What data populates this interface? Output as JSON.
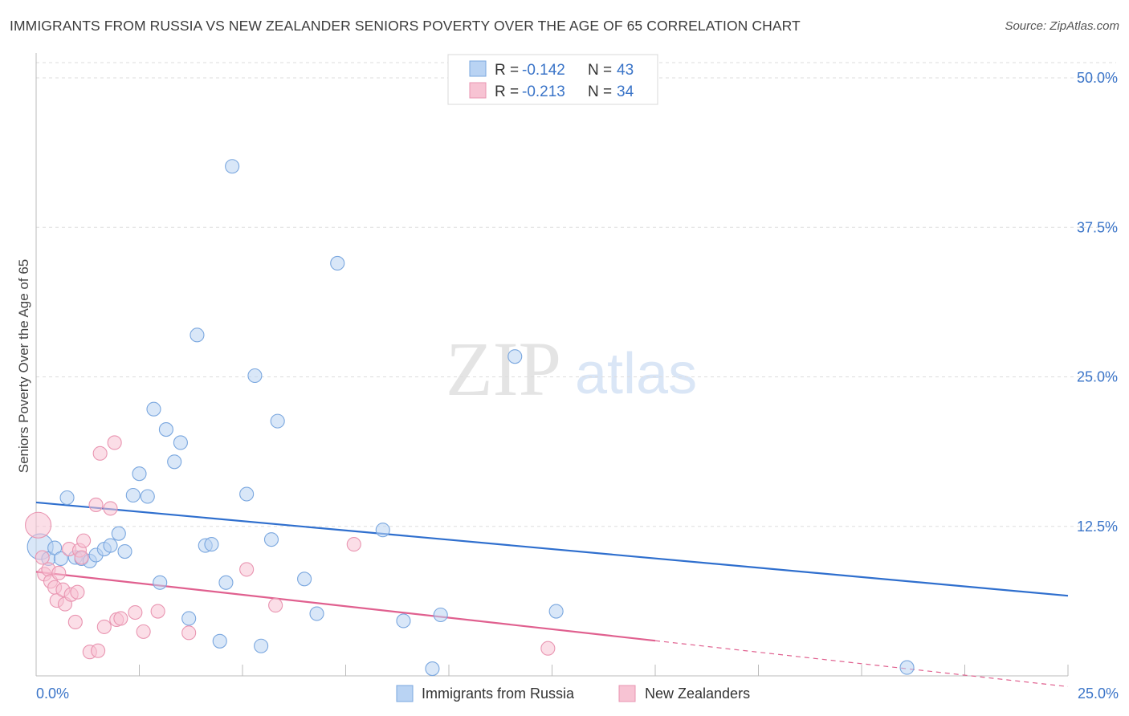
{
  "header": {
    "title": "IMMIGRANTS FROM RUSSIA VS NEW ZEALANDER SENIORS POVERTY OVER THE AGE OF 65 CORRELATION CHART",
    "source": "Source: ZipAtlas.com"
  },
  "watermark": {
    "zip": "ZIP",
    "atlas": "atlas"
  },
  "legend": {
    "r_label": "R =",
    "n_label": "N =",
    "items": [
      {
        "r": "-0.142",
        "n": "43",
        "color": "#a9c8f0"
      },
      {
        "r": "-0.213",
        "n": "34",
        "color": "#f5b8cb"
      }
    ]
  },
  "colors": {
    "blue_fill": "#b9d3f3",
    "blue_stroke": "#7aa7df",
    "blue_line": "#2f6fce",
    "pink_fill": "#f7c3d3",
    "pink_stroke": "#e995b1",
    "pink_line": "#e0608f",
    "grid": "#dddddd",
    "tick_label": "#3a74c8"
  },
  "chart_data": {
    "type": "scatter",
    "title": "IMMIGRANTS FROM RUSSIA VS NEW ZEALANDER SENIORS POVERTY OVER THE AGE OF 65 CORRELATION CHART",
    "xlabel": "",
    "ylabel": "Seniors Poverty Over the Age of 65",
    "xlim": [
      0,
      25
    ],
    "ylim": [
      0,
      50
    ],
    "y_ticks": [
      12.5,
      25.0,
      37.5,
      50.0
    ],
    "y_tick_labels": [
      "12.5%",
      "25.0%",
      "37.5%",
      "50.0%"
    ],
    "x_tick_labels": [
      "0.0%",
      "25.0%"
    ],
    "grid": true,
    "series": [
      {
        "name": "Immigrants from Russia",
        "color": "#b9d3f3",
        "stroke": "#7aa7df",
        "trend": {
          "x0": 0,
          "y0": 14.5,
          "x1": 25,
          "y1": 6.7,
          "dashed_from": null
        },
        "points": [
          {
            "x": 0.1,
            "y": 10.8,
            "big": true
          },
          {
            "x": 0.3,
            "y": 9.8
          },
          {
            "x": 0.45,
            "y": 10.7
          },
          {
            "x": 0.6,
            "y": 9.8
          },
          {
            "x": 0.75,
            "y": 14.9
          },
          {
            "x": 0.95,
            "y": 9.9
          },
          {
            "x": 1.1,
            "y": 9.8
          },
          {
            "x": 1.3,
            "y": 9.6
          },
          {
            "x": 1.45,
            "y": 10.1
          },
          {
            "x": 1.65,
            "y": 10.6
          },
          {
            "x": 1.8,
            "y": 10.9
          },
          {
            "x": 2.0,
            "y": 11.9
          },
          {
            "x": 2.15,
            "y": 10.4
          },
          {
            "x": 2.35,
            "y": 15.1
          },
          {
            "x": 2.5,
            "y": 16.9
          },
          {
            "x": 2.7,
            "y": 15.0
          },
          {
            "x": 2.85,
            "y": 22.3
          },
          {
            "x": 3.0,
            "y": 7.8
          },
          {
            "x": 3.15,
            "y": 20.6
          },
          {
            "x": 3.35,
            "y": 17.9
          },
          {
            "x": 3.5,
            "y": 19.5
          },
          {
            "x": 3.7,
            "y": 4.8
          },
          {
            "x": 3.9,
            "y": 28.5
          },
          {
            "x": 4.1,
            "y": 10.9
          },
          {
            "x": 4.25,
            "y": 11.0
          },
          {
            "x": 4.45,
            "y": 2.9
          },
          {
            "x": 4.6,
            "y": 7.8
          },
          {
            "x": 4.75,
            "y": 42.6
          },
          {
            "x": 5.1,
            "y": 15.2
          },
          {
            "x": 5.3,
            "y": 25.1
          },
          {
            "x": 5.45,
            "y": 2.5
          },
          {
            "x": 5.7,
            "y": 11.4
          },
          {
            "x": 5.85,
            "y": 21.3
          },
          {
            "x": 6.5,
            "y": 8.1
          },
          {
            "x": 6.8,
            "y": 5.2
          },
          {
            "x": 7.3,
            "y": 34.5
          },
          {
            "x": 8.4,
            "y": 12.2
          },
          {
            "x": 8.9,
            "y": 4.6
          },
          {
            "x": 9.6,
            "y": 0.6
          },
          {
            "x": 9.8,
            "y": 5.1
          },
          {
            "x": 11.6,
            "y": 26.7
          },
          {
            "x": 12.6,
            "y": 5.4
          },
          {
            "x": 21.1,
            "y": 0.7
          }
        ]
      },
      {
        "name": "New Zealanders",
        "color": "#f7c3d3",
        "stroke": "#e995b1",
        "trend": {
          "x0": 0,
          "y0": 8.7,
          "x1": 25,
          "y1": -0.9,
          "dashed_from": 15
        },
        "points": [
          {
            "x": 0.05,
            "y": 12.6,
            "big": true
          },
          {
            "x": 0.15,
            "y": 9.9
          },
          {
            "x": 0.2,
            "y": 8.5
          },
          {
            "x": 0.3,
            "y": 8.9
          },
          {
            "x": 0.35,
            "y": 7.9
          },
          {
            "x": 0.45,
            "y": 7.4
          },
          {
            "x": 0.5,
            "y": 6.3
          },
          {
            "x": 0.55,
            "y": 8.6
          },
          {
            "x": 0.65,
            "y": 7.2
          },
          {
            "x": 0.7,
            "y": 6.0
          },
          {
            "x": 0.8,
            "y": 10.6
          },
          {
            "x": 0.85,
            "y": 6.8
          },
          {
            "x": 0.95,
            "y": 4.5
          },
          {
            "x": 1.0,
            "y": 7.0
          },
          {
            "x": 1.05,
            "y": 10.5
          },
          {
            "x": 1.1,
            "y": 9.9
          },
          {
            "x": 1.15,
            "y": 11.3
          },
          {
            "x": 1.3,
            "y": 2.0
          },
          {
            "x": 1.45,
            "y": 14.3
          },
          {
            "x": 1.5,
            "y": 2.1
          },
          {
            "x": 1.55,
            "y": 18.6
          },
          {
            "x": 1.65,
            "y": 4.1
          },
          {
            "x": 1.8,
            "y": 14.0
          },
          {
            "x": 1.9,
            "y": 19.5
          },
          {
            "x": 1.95,
            "y": 4.7
          },
          {
            "x": 2.05,
            "y": 4.8
          },
          {
            "x": 2.4,
            "y": 5.3
          },
          {
            "x": 2.6,
            "y": 3.7
          },
          {
            "x": 2.95,
            "y": 5.4
          },
          {
            "x": 3.7,
            "y": 3.6
          },
          {
            "x": 5.1,
            "y": 8.9
          },
          {
            "x": 5.8,
            "y": 5.9
          },
          {
            "x": 7.7,
            "y": 11.0
          },
          {
            "x": 12.4,
            "y": 2.3
          }
        ]
      }
    ]
  }
}
